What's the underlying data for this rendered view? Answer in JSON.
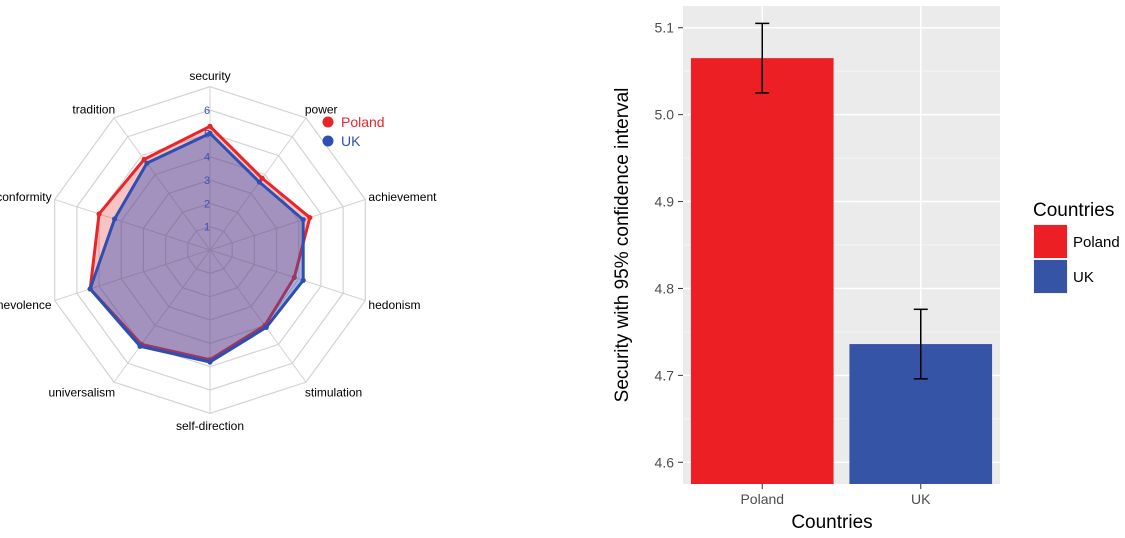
{
  "chart_data": [
    {
      "type": "radar",
      "axes": [
        "security",
        "power",
        "achievement",
        "hedonism",
        "stimulation",
        "self-direction",
        "universalism",
        "benevolence",
        "conformity",
        "tradition"
      ],
      "radial_ticks": [
        "1",
        "2",
        "3",
        "4",
        "5",
        "6"
      ],
      "rmax": 6,
      "series": [
        {
          "name": "Poland",
          "color": "#e8262a",
          "values": [
            5.3,
            3.8,
            4.5,
            3.8,
            4.0,
            4.7,
            5.0,
            5.4,
            5.0,
            4.8
          ]
        },
        {
          "name": "UK",
          "color": "#2e4fb2",
          "values": [
            5.0,
            3.6,
            4.2,
            4.2,
            4.1,
            4.8,
            5.1,
            5.4,
            4.3,
            4.6
          ]
        }
      ]
    },
    {
      "type": "bar",
      "categories": [
        "Poland",
        "UK"
      ],
      "values": [
        5.065,
        4.736
      ],
      "error_bars": [
        [
          5.025,
          5.105
        ],
        [
          4.696,
          4.776
        ]
      ],
      "colors": [
        "#ec1f24",
        "#3654a6"
      ],
      "ylabel": "Security with 95% confidence interval",
      "xlabel": "Countries",
      "ylim": [
        4.575,
        5.125
      ],
      "yticks": [
        "4.6",
        "4.7",
        "4.8",
        "4.9",
        "5.0",
        "5.1"
      ],
      "legend": {
        "title": "Countries",
        "entries": [
          "Poland",
          "UK"
        ],
        "position": "right"
      }
    }
  ]
}
